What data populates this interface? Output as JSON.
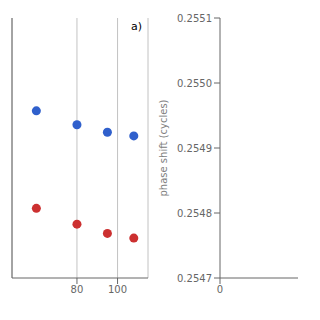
{
  "chart_data": [
    {
      "type": "scatter",
      "annotation": "a)",
      "x": [
        60,
        80,
        95,
        108
      ],
      "series": [
        {
          "color": "#3060cc",
          "values": [
            0.62,
            0.605,
            0.597,
            0.593
          ]
        },
        {
          "color": "#cc3030",
          "values": [
            0.515,
            0.498,
            0.488,
            0.483
          ]
        }
      ],
      "xlim": [
        48,
        115
      ],
      "ylim": [
        0.44,
        0.72
      ],
      "xticks": [
        80,
        100
      ],
      "grid": true,
      "tick_labels": "x"
    },
    {
      "type": "scatter",
      "series": [],
      "x": [],
      "y_label": "phase shift (cycles)",
      "xlim": [
        0,
        2
      ],
      "xticks": [
        0
      ],
      "ylim": [
        0.2547,
        0.2551
      ],
      "yticks": [
        0.2547,
        0.2548,
        0.2549,
        {
          "value": 0.255,
          "label": "0.2550"
        },
        0.2551
      ],
      "grid": false
    }
  ]
}
